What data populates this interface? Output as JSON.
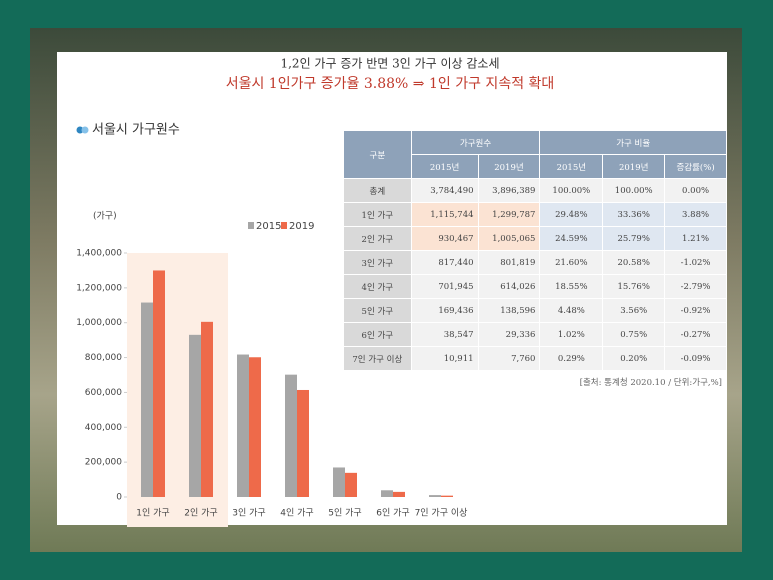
{
  "header": {
    "title": "1,2인 가구 증가 반면 3인 가구 이상 감소세",
    "subtitle": "서울시 1인가구 증가율 3.88% ⇒ 1인 가구 지속적 확대"
  },
  "section_title": "서울시 가구원수",
  "chart_data": {
    "type": "bar",
    "y_label": "(가구)",
    "categories": [
      "1인 가구",
      "2인 가구",
      "3인 가구",
      "4인 가구",
      "5인 가구",
      "6인 가구",
      "7인 가구 이상"
    ],
    "series": [
      {
        "name": "2015",
        "color": "#a6a6a6",
        "values": [
          1115744,
          930467,
          817440,
          701945,
          169436,
          38547,
          10911
        ]
      },
      {
        "name": "2019",
        "color": "#ee6a4a",
        "values": [
          1299787,
          1005065,
          801819,
          614026,
          138596,
          29336,
          7760
        ]
      }
    ],
    "ylim": [
      0,
      1400000
    ],
    "yticks": [
      0,
      {
        "value": 200000,
        "label": "200,000"
      },
      {
        "value": 400000,
        "label": "400,000"
      },
      {
        "value": 600000,
        "label": "600,000"
      },
      {
        "value": 800000,
        "label": "800,000"
      },
      {
        "value": 1000000,
        "label": "1,000,000"
      },
      {
        "value": 1200000,
        "label": "1,200,000"
      },
      {
        "value": 1400000,
        "label": "1,400,000"
      }
    ]
  },
  "table": {
    "header_groups": [
      "구분",
      "가구원수",
      "가구 비율"
    ],
    "header_columns": [
      "2015년",
      "2019년",
      "2015년",
      "2019년",
      "증감률(%)"
    ],
    "rows": [
      [
        "총계",
        "3,784,490",
        "3,896,389",
        "100.00%",
        "100.00%",
        "0.00%"
      ],
      [
        "1인 가구",
        "1,115,744",
        "1,299,787",
        "29.48%",
        "33.36%",
        "3.88%"
      ],
      [
        "2인 가구",
        "930,467",
        "1,005,065",
        "24.59%",
        "25.79%",
        "1.21%"
      ],
      [
        "3인 가구",
        "817,440",
        "801,819",
        "21.60%",
        "20.58%",
        "-1.02%"
      ],
      [
        "4인 가구",
        "701,945",
        "614,026",
        "18.55%",
        "15.76%",
        "-2.79%"
      ],
      [
        "5인 가구",
        "169,436",
        "138,596",
        "4.48%",
        "3.56%",
        "-0.92%"
      ],
      [
        "6인 가구",
        "38,547",
        "29,336",
        "1.02%",
        "0.75%",
        "-0.27%"
      ],
      [
        "7인 가구 이상",
        "10,911",
        "7,760",
        "0.29%",
        "0.20%",
        "-0.09%"
      ]
    ]
  },
  "source": "[출처: 통계청 2020.10 / 단위:가구,%]"
}
